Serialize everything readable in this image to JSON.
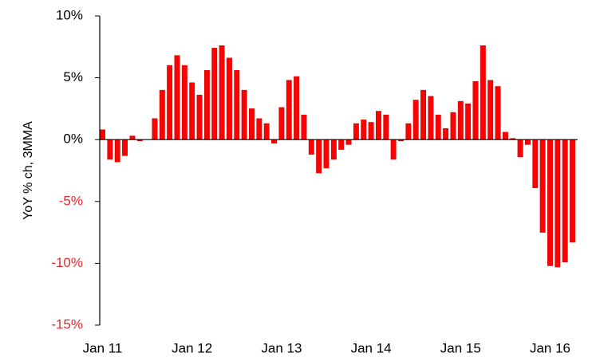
{
  "chart_data": {
    "type": "bar",
    "y_label": "YoY % ch, 3MMA",
    "categories": [
      "Jan 11",
      null,
      null,
      null,
      null,
      null,
      null,
      null,
      null,
      null,
      null,
      null,
      "Jan 12",
      null,
      null,
      null,
      null,
      null,
      null,
      null,
      null,
      null,
      null,
      null,
      "Jan 13",
      null,
      null,
      null,
      null,
      null,
      null,
      null,
      null,
      null,
      null,
      null,
      "Jan 14",
      null,
      null,
      null,
      null,
      null,
      null,
      null,
      null,
      null,
      null,
      null,
      "Jan 15",
      null,
      null,
      null,
      null,
      null,
      null,
      null,
      null,
      null,
      null,
      null,
      "Jan 16",
      null,
      null,
      null
    ],
    "values": [
      0.8,
      -1.6,
      -1.8,
      -1.3,
      0.3,
      -0.1,
      0,
      1.7,
      4.0,
      6.0,
      6.8,
      6.0,
      4.6,
      3.6,
      5.6,
      7.4,
      7.6,
      6.6,
      5.6,
      4.0,
      2.5,
      1.7,
      1.3,
      -0.3,
      2.6,
      4.8,
      5.1,
      2.0,
      -1.2,
      -2.7,
      -2.3,
      -1.6,
      -0.8,
      -0.4,
      1.3,
      1.6,
      1.4,
      2.3,
      2.0,
      -1.6,
      -0.1,
      1.3,
      3.2,
      4.0,
      3.5,
      2.0,
      0.9,
      2.2,
      3.1,
      2.9,
      4.7,
      7.6,
      4.8,
      4.3,
      0.6,
      0.1,
      -1.4,
      -0.4,
      -3.9,
      -7.5,
      -10.2,
      -10.3,
      -9.9,
      -8.3
    ],
    "color": "#ff0000",
    "ylim": [
      -15,
      10
    ],
    "yticks": [
      {
        "value": -15,
        "label": "-15%"
      },
      {
        "value": -10,
        "label": "-10%"
      },
      {
        "value": -5,
        "label": "-5%"
      },
      {
        "value": 0,
        "label": "0%"
      },
      {
        "value": 5,
        "label": "5%"
      },
      {
        "value": 10,
        "label": "10%"
      }
    ],
    "negative_label_color": "#e8262b",
    "grid": false
  }
}
